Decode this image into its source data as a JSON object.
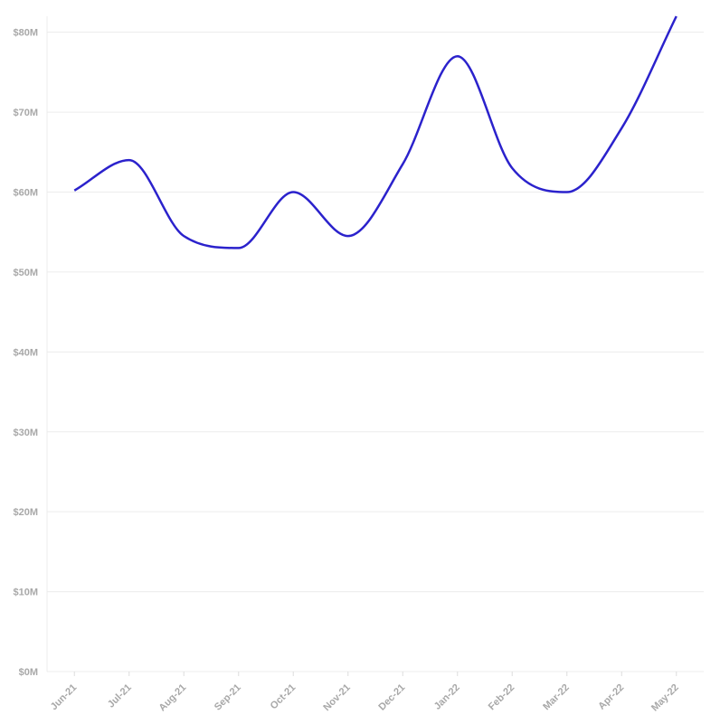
{
  "chart_data": {
    "type": "line",
    "categories": [
      "Jun-21",
      "Jul-21",
      "Aug-21",
      "Sep-21",
      "Oct-21",
      "Nov-21",
      "Dec-21",
      "Jan-22",
      "Feb-22",
      "Mar-22",
      "Apr-22",
      "May-22"
    ],
    "values": [
      60200000,
      64000000,
      54500000,
      53000000,
      60000000,
      54500000,
      63500000,
      77000000,
      63000000,
      60000000,
      68000000,
      82000000
    ],
    "color": "#2b22cc",
    "ylim": [
      0,
      82000000
    ],
    "yticks": [
      {
        "value": 0,
        "label": "$0M"
      },
      {
        "value": 10000000,
        "label": "$10M"
      },
      {
        "value": 20000000,
        "label": "$20M"
      },
      {
        "value": 30000000,
        "label": "$30M"
      },
      {
        "value": 40000000,
        "label": "$40M"
      },
      {
        "value": 50000000,
        "label": "$50M"
      },
      {
        "value": 60000000,
        "label": "$60M"
      },
      {
        "value": 70000000,
        "label": "$70M"
      },
      {
        "value": 80000000,
        "label": "$80M"
      }
    ],
    "grid": true,
    "smooth": true
  }
}
